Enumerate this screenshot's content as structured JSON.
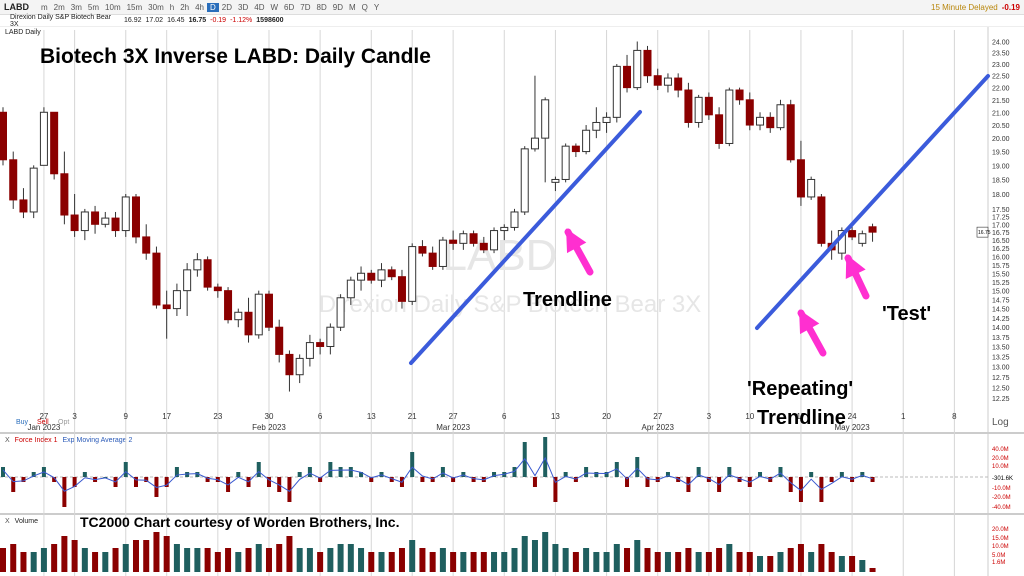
{
  "toolbar": {
    "symbol": "LABD",
    "timeframes": [
      "m",
      "2m",
      "3m",
      "5m",
      "10m",
      "15m",
      "30m",
      "h",
      "2h",
      "4h",
      "D",
      "2D",
      "3D",
      "4D",
      "W",
      "6D",
      "7D",
      "8D",
      "9D",
      "M",
      "Q",
      "Y"
    ],
    "active_timeframe": "D",
    "delay_note": "15 Minute Delayed",
    "change_badge": "-0.19"
  },
  "quote": {
    "name": "Direxion Daily S&P Biotech Bear 3X",
    "open": "16.92",
    "high": "17.02",
    "low": "16.45",
    "last": "16.75",
    "change": "-0.19",
    "change_pct": "-1.12%",
    "volume": "1598600"
  },
  "panel_labels": {
    "price": "LABD Daily",
    "force": "Force Index 1",
    "ema": "Exp Moving Average 2",
    "volume": "Volume",
    "close_x": "X"
  },
  "chart_title": "Biotech 3X Inverse LABD:  Daily Candle",
  "watermark": {
    "symbol": "LABD",
    "name": "Direxion Daily S&P Biotech Bear 3X"
  },
  "annotations": {
    "trendline": "Trendline",
    "repeating1": "'Repeating'",
    "repeating2": "Trendline",
    "test": "'Test'",
    "credit": "TC2000 Chart courtesy of Worden Brothers, Inc."
  },
  "trade_labels": {
    "buy": "Buy",
    "sell": "Sell",
    "opt": "Opt"
  },
  "scale_label": "Log",
  "price_tag": "16.75",
  "force_axis": [
    "40.0M",
    "20.0M",
    "10.0M",
    "-301.6K",
    "-10.0M",
    "-20.0M",
    "-40.0M"
  ],
  "volume_axis": [
    "20.0M",
    "15.0M",
    "10.0M",
    "5.0M",
    "1.6M"
  ],
  "colors": {
    "up": "#ffffff",
    "down": "#8b0000",
    "trend": "#3b5bdb",
    "arrow": "#ff2fd0",
    "vol_up": "#1f5f5f",
    "vol_down": "#8b0000"
  },
  "chart_data": {
    "type": "candlestick",
    "title": "Biotech 3X Inverse LABD:  Daily Candle",
    "y_scale": "log",
    "ylim": [
      12.25,
      24.25
    ],
    "y_ticks": [
      "24.00",
      "23.50",
      "23.00",
      "22.50",
      "22.00",
      "21.50",
      "21.00",
      "20.50",
      "20.00",
      "19.50",
      "19.00",
      "18.50",
      "18.00",
      "17.50",
      "17.25",
      "17.00",
      "16.75",
      "16.50",
      "16.25",
      "16.00",
      "15.75",
      "15.50",
      "15.25",
      "15.00",
      "14.75",
      "14.50",
      "14.25",
      "14.00",
      "13.75",
      "13.50",
      "13.25",
      "13.00",
      "12.75",
      "12.50",
      "12.25"
    ],
    "x_ticks": [
      {
        "i": 4,
        "label": "27",
        "sub": "Jan 2023"
      },
      {
        "i": 7,
        "label": "3",
        "sub": ""
      },
      {
        "i": 12,
        "label": "9",
        "sub": ""
      },
      {
        "i": 16,
        "label": "17",
        "sub": ""
      },
      {
        "i": 21,
        "label": "23",
        "sub": ""
      },
      {
        "i": 26,
        "label": "30",
        "sub": "Feb 2023"
      },
      {
        "i": 31,
        "label": "6",
        "sub": ""
      },
      {
        "i": 36,
        "label": "13",
        "sub": ""
      },
      {
        "i": 40,
        "label": "21",
        "sub": ""
      },
      {
        "i": 44,
        "label": "27",
        "sub": "Mar 2023"
      },
      {
        "i": 49,
        "label": "6",
        "sub": ""
      },
      {
        "i": 54,
        "label": "13",
        "sub": ""
      },
      {
        "i": 59,
        "label": "20",
        "sub": ""
      },
      {
        "i": 64,
        "label": "27",
        "sub": "Apr 2023"
      },
      {
        "i": 69,
        "label": "3",
        "sub": ""
      },
      {
        "i": 73,
        "label": "10",
        "sub": ""
      },
      {
        "i": 78,
        "label": "17",
        "sub": ""
      },
      {
        "i": 83,
        "label": "24",
        "sub": "May 2023"
      },
      {
        "i": 88,
        "label": "1",
        "sub": ""
      },
      {
        "i": 93,
        "label": "8",
        "sub": ""
      }
    ],
    "candles": [
      [
        21.0,
        21.2,
        19.0,
        19.2
      ],
      [
        19.2,
        19.5,
        17.5,
        17.8
      ],
      [
        17.8,
        18.2,
        17.2,
        17.4
      ],
      [
        17.4,
        19.0,
        17.2,
        18.9
      ],
      [
        19.0,
        21.2,
        19.0,
        21.0
      ],
      [
        21.0,
        21.0,
        18.5,
        18.7
      ],
      [
        18.7,
        19.5,
        17.0,
        17.3
      ],
      [
        17.3,
        18.0,
        16.6,
        16.8
      ],
      [
        16.8,
        17.5,
        16.5,
        17.4
      ],
      [
        17.4,
        17.6,
        16.7,
        17.0
      ],
      [
        17.0,
        17.4,
        16.9,
        17.2
      ],
      [
        17.2,
        17.4,
        16.6,
        16.8
      ],
      [
        16.8,
        18.0,
        16.6,
        17.9
      ],
      [
        17.9,
        18.0,
        16.4,
        16.6
      ],
      [
        16.6,
        17.0,
        15.9,
        16.1
      ],
      [
        16.1,
        16.3,
        14.5,
        14.6
      ],
      [
        14.6,
        15.0,
        13.7,
        14.5
      ],
      [
        14.5,
        15.2,
        14.3,
        15.0
      ],
      [
        15.0,
        15.8,
        14.3,
        15.6
      ],
      [
        15.6,
        16.1,
        15.4,
        15.9
      ],
      [
        15.9,
        16.0,
        15.0,
        15.1
      ],
      [
        15.1,
        15.2,
        14.8,
        15.0
      ],
      [
        15.0,
        15.1,
        14.1,
        14.2
      ],
      [
        14.2,
        14.5,
        14.0,
        14.4
      ],
      [
        14.4,
        14.8,
        13.6,
        13.8
      ],
      [
        13.8,
        15.0,
        13.7,
        14.9
      ],
      [
        14.9,
        15.0,
        13.9,
        14.0
      ],
      [
        14.0,
        14.2,
        13.1,
        13.3
      ],
      [
        13.3,
        13.4,
        12.4,
        12.8
      ],
      [
        12.8,
        13.3,
        12.6,
        13.2
      ],
      [
        13.2,
        13.8,
        13.0,
        13.6
      ],
      [
        13.6,
        13.7,
        13.3,
        13.5
      ],
      [
        13.5,
        14.1,
        13.3,
        14.0
      ],
      [
        14.0,
        14.9,
        13.9,
        14.8
      ],
      [
        14.8,
        15.4,
        14.6,
        15.3
      ],
      [
        15.3,
        15.7,
        15.0,
        15.5
      ],
      [
        15.5,
        15.6,
        15.2,
        15.3
      ],
      [
        15.3,
        15.8,
        15.1,
        15.6
      ],
      [
        15.6,
        15.7,
        15.3,
        15.4
      ],
      [
        15.4,
        15.6,
        14.5,
        14.7
      ],
      [
        14.7,
        16.4,
        14.6,
        16.3
      ],
      [
        16.3,
        16.5,
        16.0,
        16.1
      ],
      [
        16.1,
        16.3,
        15.6,
        15.7
      ],
      [
        15.7,
        16.6,
        15.6,
        16.5
      ],
      [
        16.5,
        16.8,
        16.2,
        16.4
      ],
      [
        16.4,
        16.8,
        16.2,
        16.7
      ],
      [
        16.7,
        16.8,
        16.3,
        16.4
      ],
      [
        16.4,
        16.6,
        16.1,
        16.2
      ],
      [
        16.2,
        16.9,
        16.1,
        16.8
      ],
      [
        16.8,
        17.0,
        16.5,
        16.9
      ],
      [
        16.9,
        17.5,
        16.8,
        17.4
      ],
      [
        17.4,
        19.7,
        17.3,
        19.6
      ],
      [
        19.6,
        22.5,
        19.5,
        20.0
      ],
      [
        20.0,
        21.6,
        18.4,
        21.5
      ],
      [
        18.4,
        18.6,
        18.1,
        18.5
      ],
      [
        18.5,
        19.8,
        18.4,
        19.7
      ],
      [
        19.7,
        19.8,
        19.3,
        19.5
      ],
      [
        19.5,
        20.5,
        19.4,
        20.3
      ],
      [
        20.3,
        21.2,
        20.0,
        20.6
      ],
      [
        20.6,
        21.0,
        20.2,
        20.8
      ],
      [
        20.8,
        23.0,
        20.6,
        22.9
      ],
      [
        22.9,
        23.4,
        21.8,
        22.0
      ],
      [
        22.0,
        24.0,
        21.9,
        23.6
      ],
      [
        23.6,
        23.8,
        22.2,
        22.5
      ],
      [
        22.5,
        22.8,
        21.9,
        22.1
      ],
      [
        22.1,
        22.6,
        21.8,
        22.4
      ],
      [
        22.4,
        22.6,
        21.6,
        21.9
      ],
      [
        21.9,
        22.2,
        20.4,
        20.6
      ],
      [
        20.6,
        21.7,
        20.4,
        21.6
      ],
      [
        21.6,
        21.8,
        20.7,
        20.9
      ],
      [
        20.9,
        21.2,
        19.6,
        19.8
      ],
      [
        19.8,
        22.0,
        19.7,
        21.9
      ],
      [
        21.9,
        22.0,
        21.3,
        21.5
      ],
      [
        21.5,
        21.8,
        20.3,
        20.5
      ],
      [
        20.5,
        21.0,
        20.3,
        20.8
      ],
      [
        20.8,
        21.0,
        20.2,
        20.4
      ],
      [
        20.4,
        21.5,
        20.3,
        21.3
      ],
      [
        21.3,
        21.5,
        19.1,
        19.2
      ],
      [
        19.2,
        19.9,
        17.6,
        17.9
      ],
      [
        17.9,
        18.6,
        17.8,
        18.5
      ],
      [
        17.9,
        18.0,
        16.3,
        16.4
      ],
      [
        16.4,
        16.8,
        15.9,
        16.2
      ],
      [
        16.1,
        16.9,
        15.9,
        16.8
      ],
      [
        16.8,
        17.0,
        16.5,
        16.6
      ],
      [
        16.4,
        16.8,
        16.3,
        16.7
      ],
      [
        16.92,
        17.02,
        16.45,
        16.75
      ]
    ],
    "force_index": [
      2,
      -3,
      -1,
      1,
      2,
      -1,
      -6,
      -2,
      1,
      -1,
      0,
      -2,
      3,
      -2,
      -1,
      -4,
      -2,
      2,
      1,
      1,
      -1,
      -1,
      -3,
      1,
      -2,
      3,
      -2,
      -3,
      -5,
      1,
      2,
      -1,
      3,
      2,
      2,
      1,
      -1,
      1,
      -1,
      -2,
      5,
      -1,
      -1,
      2,
      -1,
      1,
      -1,
      -1,
      1,
      1,
      2,
      7,
      -2,
      8,
      -5,
      1,
      -1,
      2,
      1,
      1,
      3,
      -2,
      4,
      -2,
      -1,
      1,
      -1,
      -3,
      2,
      -1,
      -3,
      2,
      -1,
      -2,
      1,
      -1,
      2,
      -3,
      -5,
      1,
      -5,
      -1,
      1,
      -1,
      1,
      -1
    ],
    "volume": [
      6,
      7,
      5,
      5,
      6,
      7,
      9,
      8,
      6,
      5,
      5,
      6,
      7,
      8,
      8,
      10,
      9,
      7,
      6,
      6,
      6,
      5,
      6,
      5,
      6,
      7,
      6,
      7,
      9,
      6,
      6,
      5,
      6,
      7,
      7,
      6,
      5,
      5,
      5,
      6,
      8,
      6,
      5,
      6,
      5,
      5,
      5,
      5,
      5,
      5,
      6,
      9,
      8,
      10,
      7,
      6,
      5,
      6,
      5,
      5,
      7,
      6,
      8,
      6,
      5,
      5,
      5,
      6,
      5,
      5,
      6,
      7,
      5,
      5,
      4,
      4,
      5,
      6,
      7,
      5,
      7,
      5,
      4,
      4,
      3,
      1
    ]
  }
}
